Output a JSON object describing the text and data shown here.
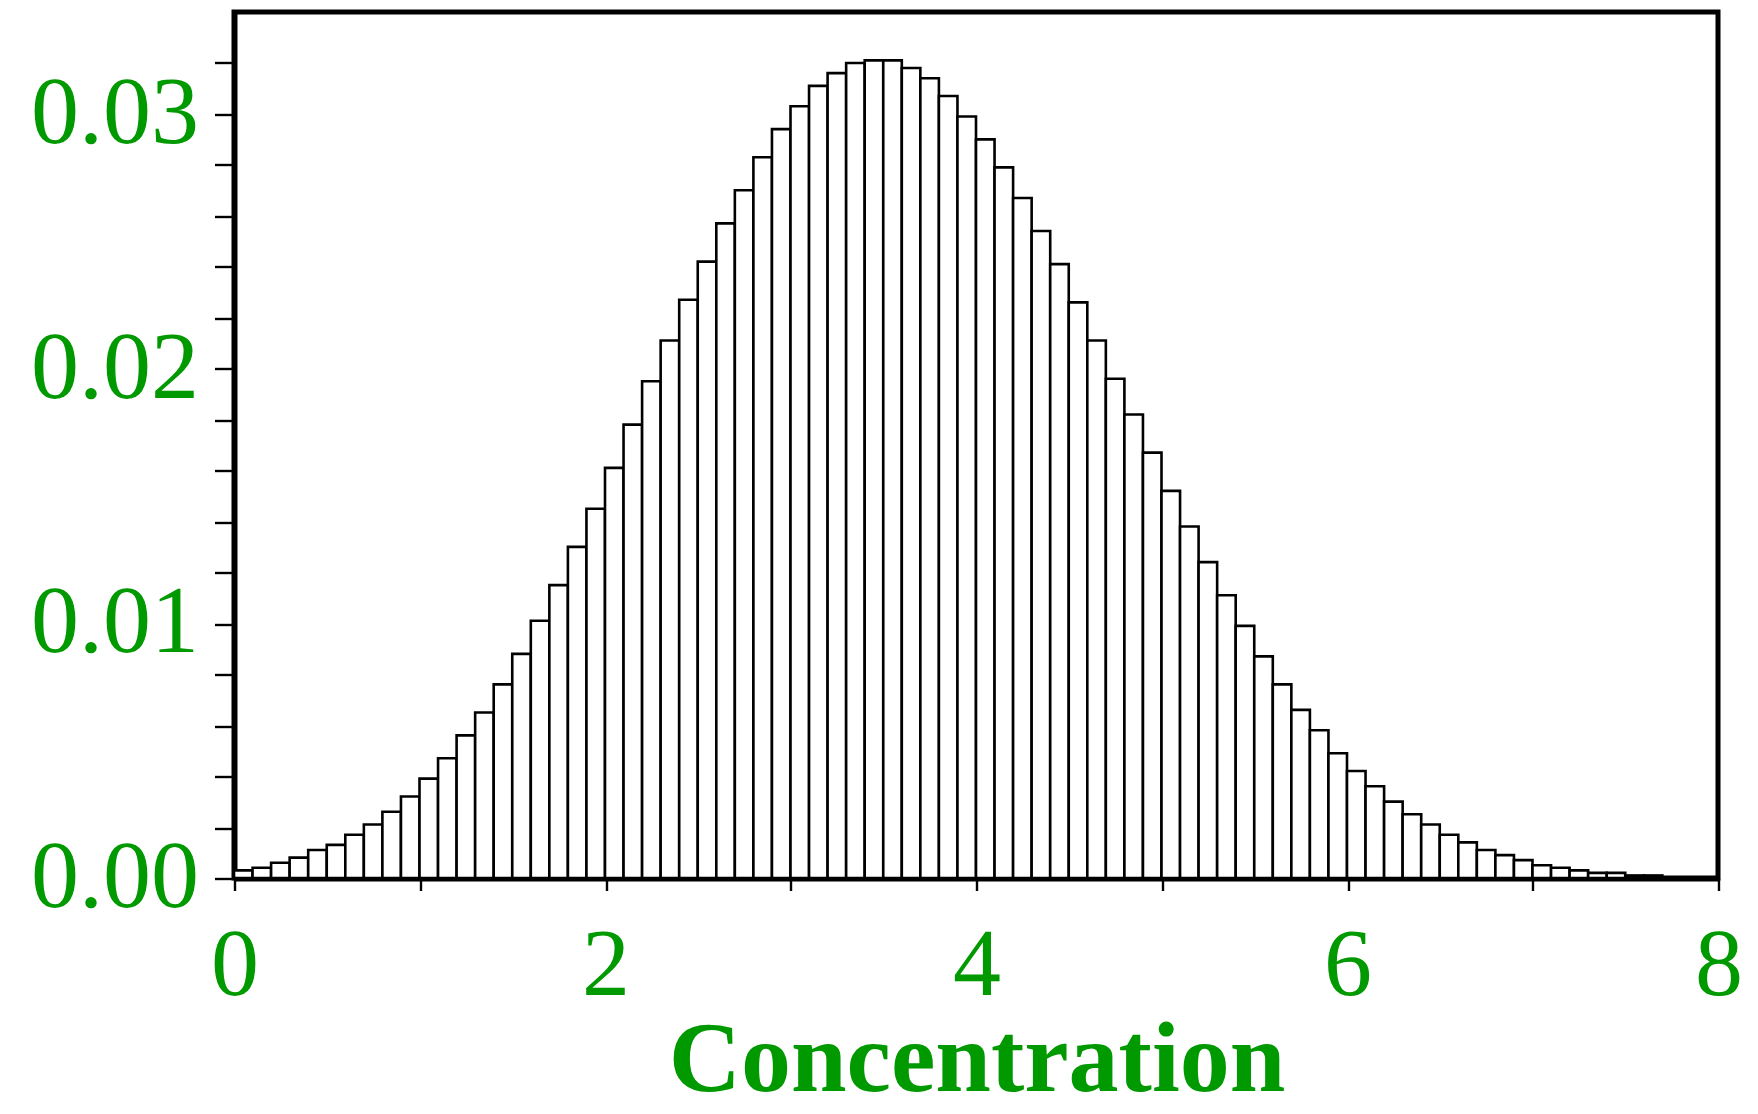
{
  "chart_data": {
    "type": "histogram",
    "xlabel": "Concentration",
    "color": "#ffffff",
    "bins": [
      0,
      0.1,
      0.2,
      0.3,
      0.4,
      0.5,
      0.6,
      0.7,
      0.8,
      0.9,
      1,
      1.1,
      1.2,
      1.3,
      1.4,
      1.5,
      1.6,
      1.7,
      1.8,
      1.9,
      2,
      2.1,
      2.2,
      2.3,
      2.4,
      2.5,
      2.6,
      2.7,
      2.8,
      2.9,
      3,
      3.1,
      3.2,
      3.3,
      3.4,
      3.5,
      3.6,
      3.7,
      3.8,
      3.9,
      4,
      4.1,
      4.2,
      4.3,
      4.4,
      4.5,
      4.6,
      4.7,
      4.8,
      4.9,
      5,
      5.1,
      5.2,
      5.3,
      5.4,
      5.5,
      5.6,
      5.7,
      5.8,
      5.9,
      6,
      6.1,
      6.2,
      6.3,
      6.4,
      6.5,
      6.6,
      6.7,
      6.8,
      6.9,
      7,
      7.1,
      7.2,
      7.3,
      7.4,
      7.5,
      7.6,
      7.7,
      7.8,
      7.9,
      8
    ],
    "values": [
      0.0003,
      0.0004,
      0.0006,
      0.0008,
      0.0011,
      0.0013,
      0.0017,
      0.0021,
      0.0026,
      0.0032,
      0.0039,
      0.0047,
      0.0056,
      0.0065,
      0.0076,
      0.0088,
      0.0101,
      0.0115,
      0.013,
      0.0145,
      0.0161,
      0.0178,
      0.0195,
      0.0211,
      0.0227,
      0.0242,
      0.0257,
      0.027,
      0.0283,
      0.0294,
      0.0303,
      0.0311,
      0.0316,
      0.032,
      0.0321,
      0.0321,
      0.0318,
      0.0314,
      0.0307,
      0.0299,
      0.029,
      0.0279,
      0.0267,
      0.0254,
      0.0241,
      0.0226,
      0.0211,
      0.0196,
      0.0182,
      0.0167,
      0.0152,
      0.0138,
      0.0124,
      0.0111,
      0.0099,
      0.0087,
      0.0076,
      0.0066,
      0.0058,
      0.0049,
      0.0042,
      0.0036,
      0.003,
      0.0025,
      0.0021,
      0.0017,
      0.0014,
      0.0011,
      0.0009,
      0.0007,
      0.0005,
      0.0004,
      0.0003,
      0.0002,
      0.0002,
      0.0001,
      0.0001,
      null,
      null,
      null
    ],
    "xlim": [
      0,
      8
    ],
    "xticks": [
      0,
      {
        "value": 1,
        "label": null
      },
      2,
      {
        "value": 3,
        "label": null
      },
      4,
      {
        "value": 5,
        "label": null
      },
      6,
      {
        "value": 7,
        "label": null
      },
      8
    ],
    "ylim": [
      0,
      0.034
    ],
    "yticks": [
      {
        "value": 0,
        "label": "0.00"
      },
      {
        "value": 0.002,
        "label": null
      },
      {
        "value": 0.004,
        "label": null
      },
      {
        "value": 0.006,
        "label": null
      },
      {
        "value": 0.008,
        "label": null
      },
      0.01,
      {
        "value": 0.012,
        "label": null
      },
      {
        "value": 0.014,
        "label": null
      },
      {
        "value": 0.016,
        "label": null
      },
      {
        "value": 0.018,
        "label": null
      },
      0.02,
      {
        "value": 0.022,
        "label": null
      },
      {
        "value": 0.024,
        "label": null
      },
      {
        "value": 0.026,
        "label": null
      },
      {
        "value": 0.028,
        "label": null
      },
      0.03,
      {
        "value": 0.032,
        "label": null
      }
    ]
  }
}
